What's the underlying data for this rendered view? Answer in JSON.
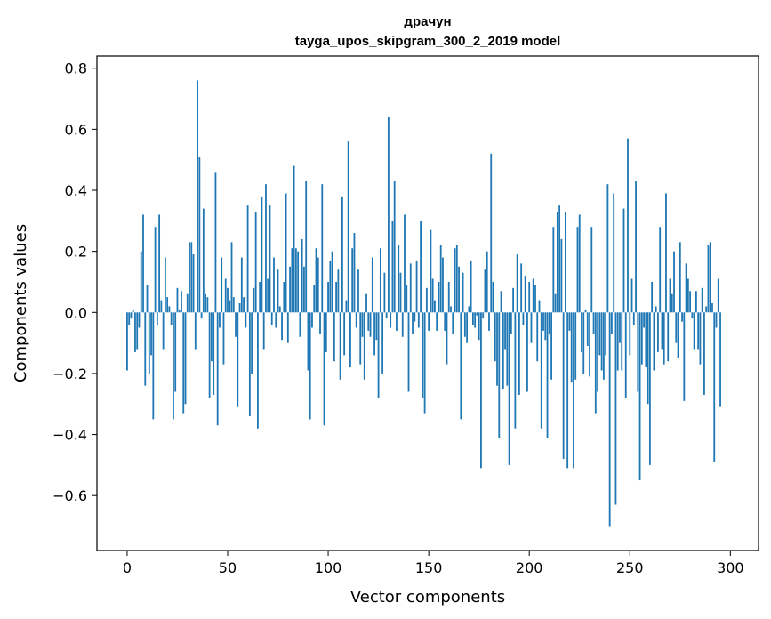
{
  "chart_data": {
    "type": "bar",
    "title": "дрaчун",
    "subtitle": "tayga_upos_skipgram_300_2_2019 model",
    "xlabel": "Vector components",
    "ylabel": "Components values",
    "xlim": [
      -15,
      314
    ],
    "ylim": [
      -0.78,
      0.84
    ],
    "x_ticks": [
      0,
      50,
      100,
      150,
      200,
      250,
      300
    ],
    "x_tick_labels": [
      "0",
      "50",
      "100",
      "150",
      "200",
      "250",
      "300"
    ],
    "y_ticks": [
      -0.6,
      -0.4,
      -0.2,
      0.0,
      0.2,
      0.4,
      0.6,
      0.8
    ],
    "y_tick_labels": [
      "−0.6",
      "−0.4",
      "−0.2",
      "0.0",
      "0.2",
      "0.4",
      "0.6",
      "0.8"
    ],
    "bar_color": "#1f77b4",
    "grid": false,
    "values": [
      -0.19,
      -0.04,
      -0.02,
      0.01,
      -0.13,
      -0.12,
      -0.05,
      0.2,
      0.32,
      -0.24,
      0.09,
      -0.2,
      -0.14,
      -0.35,
      0.28,
      -0.04,
      0.32,
      0.04,
      -0.12,
      0.18,
      0.05,
      0.02,
      -0.04,
      -0.35,
      -0.26,
      0.08,
      0.01,
      0.07,
      -0.33,
      -0.3,
      0.06,
      0.23,
      0.23,
      0.19,
      -0.12,
      0.76,
      0.51,
      -0.02,
      0.34,
      0.06,
      0.05,
      -0.28,
      -0.16,
      -0.27,
      0.46,
      -0.37,
      -0.05,
      0.18,
      -0.17,
      0.11,
      0.08,
      0.04,
      0.23,
      0.05,
      -0.08,
      -0.31,
      0.03,
      0.18,
      0.05,
      -0.05,
      0.35,
      -0.34,
      -0.2,
      0.08,
      0.33,
      -0.38,
      0.1,
      0.38,
      -0.12,
      0.42,
      0.11,
      0.35,
      -0.04,
      0.18,
      -0.05,
      0.14,
      0.02,
      -0.09,
      0.1,
      0.39,
      -0.1,
      0.15,
      0.21,
      0.48,
      0.21,
      0.2,
      -0.08,
      0.24,
      0.15,
      0.43,
      -0.19,
      -0.35,
      -0.05,
      0.09,
      0.21,
      0.18,
      -0.07,
      0.42,
      -0.37,
      -0.13,
      0.1,
      0.17,
      0.2,
      -0.16,
      0.1,
      0.14,
      -0.22,
      0.38,
      -0.14,
      0.04,
      0.56,
      -0.18,
      0.21,
      0.26,
      -0.05,
      0.14,
      -0.17,
      -0.08,
      -0.22,
      0.06,
      -0.06,
      -0.08,
      0.18,
      -0.14,
      -0.09,
      -0.28,
      0.21,
      -0.2,
      0.13,
      -0.02,
      0.64,
      -0.05,
      0.3,
      0.43,
      -0.06,
      0.22,
      0.13,
      -0.08,
      0.32,
      0.09,
      -0.26,
      0.16,
      -0.07,
      -0.03,
      0.17,
      -0.05,
      0.3,
      -0.28,
      -0.33,
      0.08,
      -0.06,
      0.27,
      0.11,
      0.04,
      -0.06,
      0.1,
      0.22,
      0.18,
      -0.06,
      -0.17,
      0.1,
      0.02,
      -0.07,
      0.21,
      0.22,
      0.15,
      -0.35,
      0.13,
      -0.08,
      -0.1,
      0.02,
      0.17,
      -0.04,
      -0.05,
      -0.01,
      -0.09,
      -0.51,
      -0.02,
      0.14,
      0.2,
      -0.06,
      0.52,
      0.1,
      -0.16,
      -0.24,
      -0.41,
      0.07,
      -0.25,
      -0.12,
      -0.24,
      -0.5,
      -0.07,
      0.08,
      -0.38,
      0.19,
      -0.27,
      0.16,
      -0.04,
      0.12,
      -0.26,
      0.1,
      -0.1,
      0.11,
      0.09,
      -0.16,
      0.04,
      -0.38,
      -0.06,
      -0.09,
      -0.41,
      -0.07,
      -0.22,
      0.28,
      0.06,
      0.33,
      0.35,
      0.24,
      -0.48,
      0.33,
      -0.51,
      -0.06,
      -0.23,
      -0.51,
      -0.22,
      0.28,
      0.32,
      -0.13,
      -0.2,
      0.01,
      -0.11,
      -0.21,
      0.28,
      -0.07,
      -0.33,
      -0.26,
      -0.14,
      -0.19,
      -0.22,
      -0.14,
      0.42,
      -0.7,
      -0.07,
      0.39,
      -0.63,
      -0.19,
      -0.1,
      -0.19,
      0.34,
      -0.28,
      0.57,
      -0.14,
      0.11,
      -0.04,
      0.43,
      -0.26,
      -0.55,
      -0.17,
      -0.05,
      -0.18,
      -0.3,
      -0.5,
      0.1,
      -0.19,
      0.02,
      -0.13,
      0.28,
      -0.12,
      -0.17,
      0.39,
      -0.16,
      0.11,
      0.06,
      0.2,
      -0.1,
      -0.15,
      0.23,
      -0.03,
      -0.29,
      0.16,
      0.11,
      0.07,
      -0.02,
      -0.12,
      0.07,
      -0.12,
      -0.17,
      0.08,
      -0.27,
      0.02,
      0.22,
      0.23,
      0.03,
      -0.49,
      -0.05,
      0.11,
      -0.31
    ]
  }
}
